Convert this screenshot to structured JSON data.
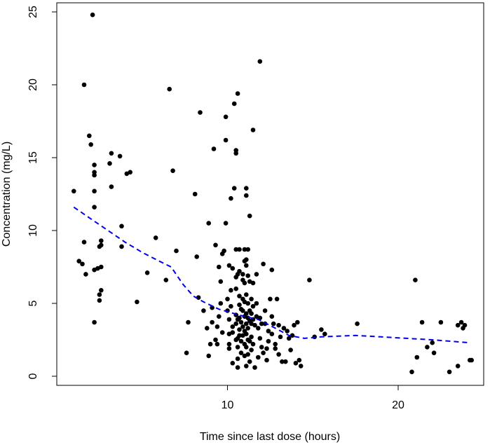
{
  "chart_data": {
    "type": "scatter",
    "xlabel": "Time since last dose (hours)",
    "ylabel": "Concentration (mg/L)",
    "xlim": [
      0,
      25
    ],
    "ylim": [
      -1,
      26
    ],
    "x_ticks": [
      10,
      20
    ],
    "y_ticks": [
      0,
      5,
      10,
      15,
      20,
      25
    ],
    "grid": false,
    "legend": "none",
    "point_color": "#000000",
    "trend_color": "#0000ee",
    "series": [
      {
        "kind": "points",
        "points": [
          [
            1.0,
            12.7
          ],
          [
            1.3,
            7.9
          ],
          [
            1.5,
            7.7
          ],
          [
            1.6,
            20.0
          ],
          [
            1.6,
            9.2
          ],
          [
            1.7,
            7.0
          ],
          [
            1.9,
            16.5
          ],
          [
            2.0,
            15.9
          ],
          [
            2.1,
            24.8
          ],
          [
            2.2,
            14.5
          ],
          [
            2.2,
            14.0
          ],
          [
            2.2,
            13.8
          ],
          [
            2.2,
            12.7
          ],
          [
            2.2,
            11.6
          ],
          [
            2.2,
            7.3
          ],
          [
            2.2,
            3.7
          ],
          [
            2.4,
            7.4
          ],
          [
            2.5,
            5.6
          ],
          [
            2.5,
            5.2
          ],
          [
            2.5,
            8.9
          ],
          [
            2.6,
            5.9
          ],
          [
            2.6,
            9.3
          ],
          [
            2.6,
            7.5
          ],
          [
            2.6,
            9.0
          ],
          [
            3.1,
            14.6
          ],
          [
            3.2,
            13.0
          ],
          [
            3.2,
            15.3
          ],
          [
            3.7,
            15.1
          ],
          [
            3.8,
            10.3
          ],
          [
            3.8,
            8.9
          ],
          [
            4.1,
            13.9
          ],
          [
            4.3,
            14.0
          ],
          [
            4.7,
            5.1
          ],
          [
            5.3,
            7.1
          ],
          [
            5.8,
            9.5
          ],
          [
            6.4,
            6.6
          ],
          [
            6.6,
            19.7
          ],
          [
            6.8,
            14.1
          ],
          [
            7.0,
            8.6
          ],
          [
            7.6,
            1.6
          ],
          [
            7.7,
            3.7
          ],
          [
            8.1,
            12.5
          ],
          [
            8.2,
            8.2
          ],
          [
            8.3,
            5.4
          ],
          [
            8.4,
            18.1
          ],
          [
            8.6,
            4.5
          ],
          [
            8.8,
            3.3
          ],
          [
            8.9,
            10.5
          ],
          [
            8.9,
            1.4
          ],
          [
            9.0,
            2.2
          ],
          [
            9.1,
            4.7
          ],
          [
            9.1,
            3.7
          ],
          [
            9.2,
            15.6
          ],
          [
            9.3,
            2.5
          ],
          [
            9.3,
            9.0
          ],
          [
            9.4,
            2.2
          ],
          [
            9.4,
            3.4
          ],
          [
            9.5,
            4.1
          ],
          [
            9.5,
            7.5
          ],
          [
            9.6,
            6.5
          ],
          [
            9.6,
            5.0
          ],
          [
            9.7,
            3.0
          ],
          [
            9.7,
            8.4
          ],
          [
            9.8,
            8.6
          ],
          [
            9.9,
            10.5
          ],
          [
            9.9,
            17.8
          ],
          [
            9.9,
            16.2
          ],
          [
            10.0,
            5.3
          ],
          [
            10.0,
            4.5
          ],
          [
            10.1,
            7.6
          ],
          [
            10.1,
            3.9
          ],
          [
            10.1,
            2.9
          ],
          [
            10.1,
            2.2
          ],
          [
            10.1,
            1.9
          ],
          [
            10.2,
            12.2
          ],
          [
            10.2,
            5.9
          ],
          [
            10.2,
            4.8
          ],
          [
            10.3,
            7.4
          ],
          [
            10.3,
            3.4
          ],
          [
            10.3,
            3.0
          ],
          [
            10.3,
            0.9
          ],
          [
            10.4,
            12.9
          ],
          [
            10.4,
            18.7
          ],
          [
            10.5,
            15.5
          ],
          [
            10.5,
            15.3
          ],
          [
            10.5,
            8.7
          ],
          [
            10.5,
            6.8
          ],
          [
            10.5,
            6.0
          ],
          [
            10.5,
            4.2
          ],
          [
            10.5,
            3.6
          ],
          [
            10.5,
            2.5
          ],
          [
            10.6,
            19.4
          ],
          [
            10.6,
            7.0
          ],
          [
            10.6,
            3.9
          ],
          [
            10.6,
            2.6
          ],
          [
            10.6,
            2.0
          ],
          [
            10.6,
            1.2
          ],
          [
            10.6,
            0.6
          ],
          [
            10.7,
            8.7
          ],
          [
            10.7,
            7.2
          ],
          [
            10.7,
            5.5
          ],
          [
            10.7,
            4.9
          ],
          [
            10.7,
            4.0
          ],
          [
            10.7,
            3.2
          ],
          [
            10.7,
            2.8
          ],
          [
            10.8,
            4.6
          ],
          [
            10.8,
            3.7
          ],
          [
            10.8,
            2.4
          ],
          [
            10.8,
            1.6
          ],
          [
            10.9,
            7.0
          ],
          [
            10.9,
            6.6
          ],
          [
            10.9,
            5.3
          ],
          [
            10.9,
            4.5
          ],
          [
            10.9,
            3.4
          ],
          [
            10.9,
            2.8
          ],
          [
            11.0,
            8.7
          ],
          [
            11.0,
            7.9
          ],
          [
            11.0,
            6.4
          ],
          [
            11.0,
            5.1
          ],
          [
            11.0,
            4.1
          ],
          [
            11.0,
            3.1
          ],
          [
            11.0,
            2.2
          ],
          [
            11.0,
            1.4
          ],
          [
            11.1,
            12.9
          ],
          [
            11.1,
            12.4
          ],
          [
            11.1,
            8.0
          ],
          [
            11.1,
            7.6
          ],
          [
            11.1,
            5.6
          ],
          [
            11.1,
            4.3
          ],
          [
            11.1,
            3.6
          ],
          [
            11.1,
            2.9
          ],
          [
            11.1,
            2.0
          ],
          [
            11.1,
            0.7
          ],
          [
            11.2,
            8.7
          ],
          [
            11.2,
            6.9
          ],
          [
            11.2,
            5.0
          ],
          [
            11.2,
            4.0
          ],
          [
            11.2,
            3.3
          ],
          [
            11.2,
            2.5
          ],
          [
            11.2,
            1.5
          ],
          [
            11.3,
            11.0
          ],
          [
            11.3,
            6.5
          ],
          [
            11.3,
            4.5
          ],
          [
            11.3,
            3.8
          ],
          [
            11.3,
            2.4
          ],
          [
            11.3,
            1.0
          ],
          [
            11.4,
            5.3
          ],
          [
            11.4,
            4.3
          ],
          [
            11.4,
            3.6
          ],
          [
            11.4,
            2.7
          ],
          [
            11.4,
            1.8
          ],
          [
            11.5,
            16.9
          ],
          [
            11.5,
            6.4
          ],
          [
            11.5,
            4.8
          ],
          [
            11.5,
            3.9
          ],
          [
            11.5,
            2.2
          ],
          [
            11.6,
            3.5
          ],
          [
            11.6,
            0.6
          ],
          [
            11.7,
            7.0
          ],
          [
            11.7,
            5.0
          ],
          [
            11.7,
            4.1
          ],
          [
            11.8,
            3.3
          ],
          [
            11.8,
            1.3
          ],
          [
            11.9,
            21.6
          ],
          [
            11.9,
            4.0
          ],
          [
            11.9,
            2.6
          ],
          [
            12.0,
            3.6
          ],
          [
            12.0,
            2.0
          ],
          [
            12.1,
            7.7
          ],
          [
            12.1,
            1.6
          ],
          [
            12.2,
            4.5
          ],
          [
            12.2,
            3.6
          ],
          [
            12.3,
            1.9
          ],
          [
            12.3,
            1.1
          ],
          [
            12.4,
            2.4
          ],
          [
            12.4,
            3.1
          ],
          [
            12.5,
            5.3
          ],
          [
            12.6,
            7.3
          ],
          [
            12.6,
            4.1
          ],
          [
            12.6,
            2.9
          ],
          [
            12.7,
            3.6
          ],
          [
            12.8,
            1.9
          ],
          [
            12.8,
            2.2
          ],
          [
            12.9,
            5.3
          ],
          [
            13.0,
            1.5
          ],
          [
            13.0,
            3.5
          ],
          [
            13.1,
            2.7
          ],
          [
            13.2,
            1.0
          ],
          [
            13.3,
            3.3
          ],
          [
            13.4,
            1.0
          ],
          [
            13.5,
            3.1
          ],
          [
            13.6,
            2.6
          ],
          [
            13.7,
            1.8
          ],
          [
            13.8,
            2.8
          ],
          [
            13.9,
            3.5
          ],
          [
            14.0,
            0.9
          ],
          [
            14.1,
            3.7
          ],
          [
            14.2,
            1.1
          ],
          [
            14.3,
            0.7
          ],
          [
            14.8,
            6.6
          ],
          [
            15.1,
            2.7
          ],
          [
            15.5,
            3.2
          ],
          [
            15.7,
            2.9
          ],
          [
            17.6,
            3.6
          ],
          [
            20.8,
            0.3
          ],
          [
            21.0,
            6.6
          ],
          [
            21.1,
            1.3
          ],
          [
            21.4,
            3.7
          ],
          [
            21.7,
            2.0
          ],
          [
            22.0,
            2.3
          ],
          [
            22.1,
            1.6
          ],
          [
            22.5,
            3.7
          ],
          [
            23.0,
            0.3
          ],
          [
            23.5,
            3.5
          ],
          [
            23.5,
            0.7
          ],
          [
            23.7,
            3.7
          ],
          [
            23.8,
            3.3
          ],
          [
            23.9,
            3.5
          ],
          [
            24.2,
            1.1
          ],
          [
            24.3,
            1.1
          ]
        ]
      },
      {
        "kind": "trend",
        "style": "dashed",
        "points": [
          [
            1.0,
            11.6
          ],
          [
            2.0,
            10.8
          ],
          [
            3.0,
            10.0
          ],
          [
            4.0,
            9.2
          ],
          [
            5.0,
            8.5
          ],
          [
            6.0,
            7.9
          ],
          [
            6.7,
            7.5
          ],
          [
            7.4,
            6.3
          ],
          [
            8.0,
            5.5
          ],
          [
            8.6,
            5.1
          ],
          [
            9.5,
            4.6
          ],
          [
            10.4,
            4.3
          ],
          [
            11.0,
            4.1
          ],
          [
            11.8,
            3.9
          ],
          [
            12.8,
            3.3
          ],
          [
            13.6,
            2.8
          ],
          [
            14.5,
            2.6
          ],
          [
            15.5,
            2.7
          ],
          [
            17.5,
            2.8
          ],
          [
            19.0,
            2.7
          ],
          [
            20.5,
            2.6
          ],
          [
            22.0,
            2.5
          ],
          [
            24.2,
            2.3
          ]
        ]
      }
    ]
  }
}
